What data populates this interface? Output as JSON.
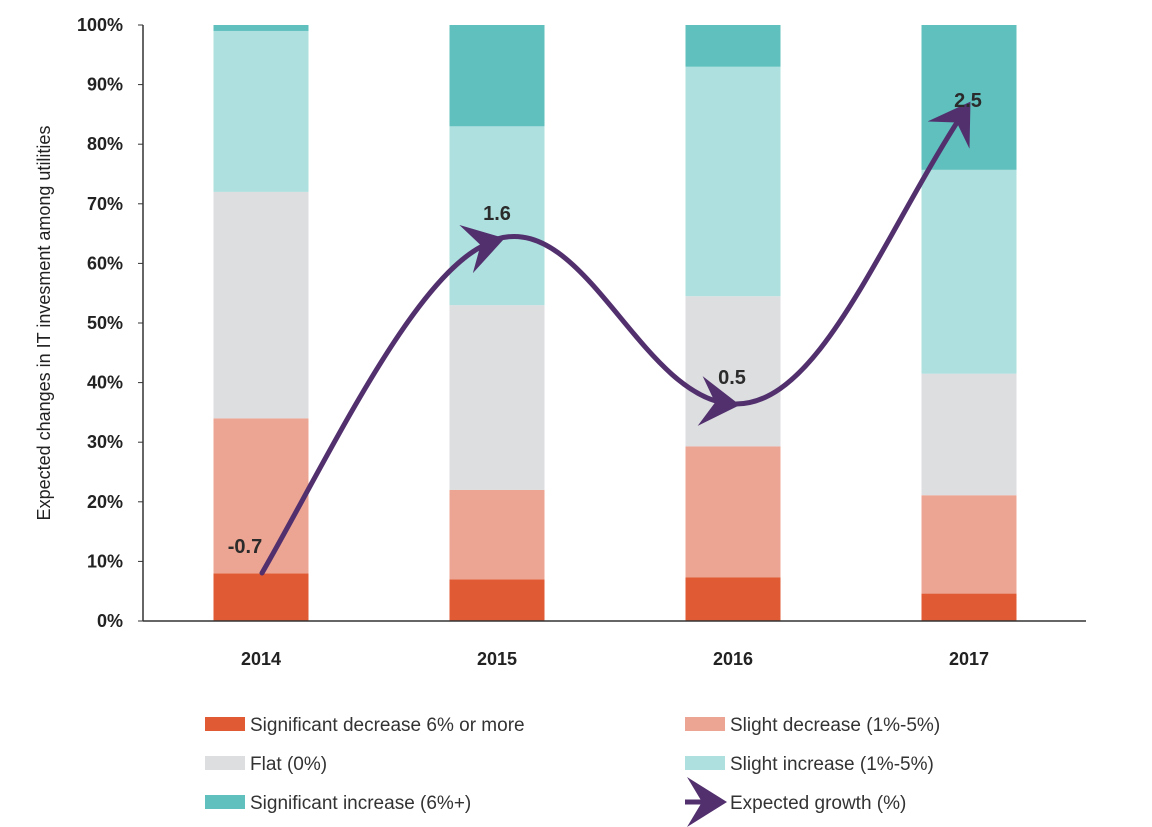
{
  "chart_data": {
    "type": "bar",
    "stacked": true,
    "categories": [
      "2014",
      "2015",
      "2016",
      "2017"
    ],
    "series": [
      {
        "name": "Significant decrease 6% or more",
        "color": "#e05a33",
        "values": [
          8,
          7,
          7.3,
          4.6
        ]
      },
      {
        "name": "Slight decrease (1%-5%)",
        "color": "#eca592",
        "values": [
          26,
          15,
          22,
          16.5
        ]
      },
      {
        "name": "Flat (0%)",
        "color": "#dcdee0",
        "values": [
          38,
          31,
          25.2,
          20.4
        ]
      },
      {
        "name": "Slight increase (1%-5%)",
        "color": "#ade0de",
        "values": [
          27,
          30,
          38.5,
          34.2
        ]
      },
      {
        "name": "Significant increase (6%+)",
        "color": "#5fc0be",
        "values": [
          1,
          17,
          7,
          24.3
        ]
      }
    ],
    "growth": {
      "name": "Expected growth (%)",
      "color": "#52306e",
      "values": [
        -0.7,
        1.6,
        0.5,
        2.5
      ],
      "labels": [
        "-0.7",
        "1.6",
        "0.5",
        "2.5"
      ]
    },
    "ylabel": "Expected changes in IT invesment among utilities",
    "ylim": [
      0,
      100
    ],
    "yticks": [
      0,
      10,
      20,
      30,
      40,
      50,
      60,
      70,
      80,
      90,
      100
    ],
    "ytick_labels": [
      "0%",
      "10%",
      "20%",
      "30%",
      "40%",
      "50%",
      "60%",
      "70%",
      "80%",
      "90%",
      "100%"
    ],
    "grid": false,
    "legend_position": "bottom"
  }
}
